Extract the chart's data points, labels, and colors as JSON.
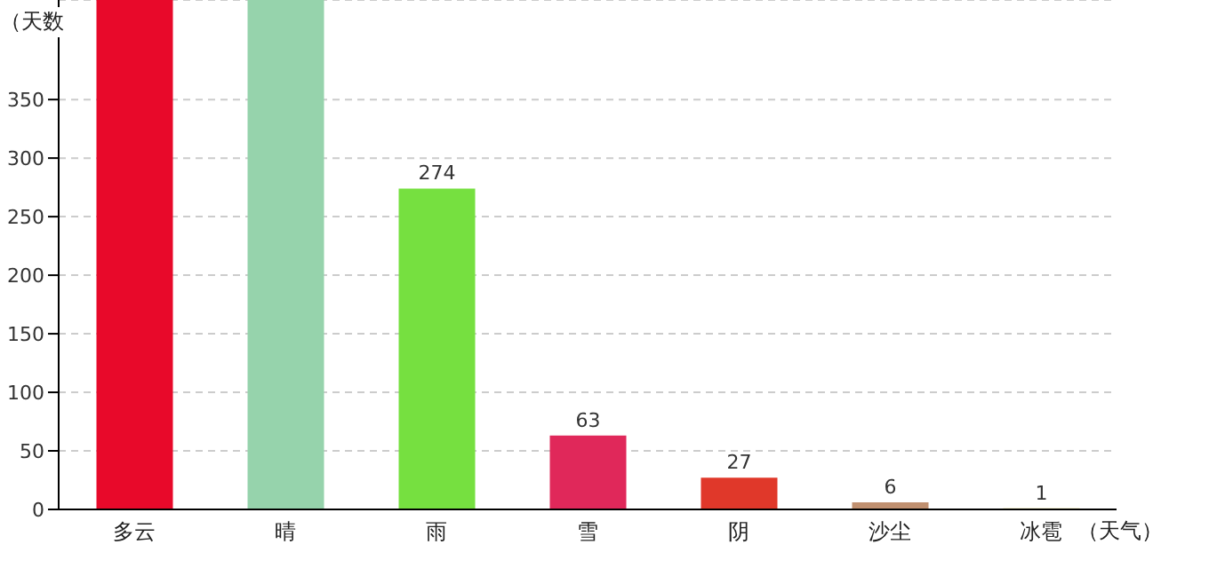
{
  "chart_data": {
    "type": "bar",
    "ylabel": "（天数",
    "xlabel": "（天气）",
    "categories": [
      "多云",
      "晴",
      "雨",
      "雪",
      "阴",
      "沙尘",
      "冰雹"
    ],
    "values": [
      435,
      435,
      274,
      63,
      27,
      6,
      1
    ],
    "colors": [
      "#e8092a",
      "#96d3ac",
      "#76e040",
      "#e0285a",
      "#e0382a",
      "#c09070",
      "#e0d060"
    ],
    "value_labels": [
      null,
      null,
      "274",
      "63",
      "27",
      "6",
      "1"
    ],
    "ylim": [
      0,
      435
    ],
    "yticks": [
      0,
      50,
      100,
      150,
      200,
      250,
      300,
      350
    ],
    "grid": "y"
  }
}
